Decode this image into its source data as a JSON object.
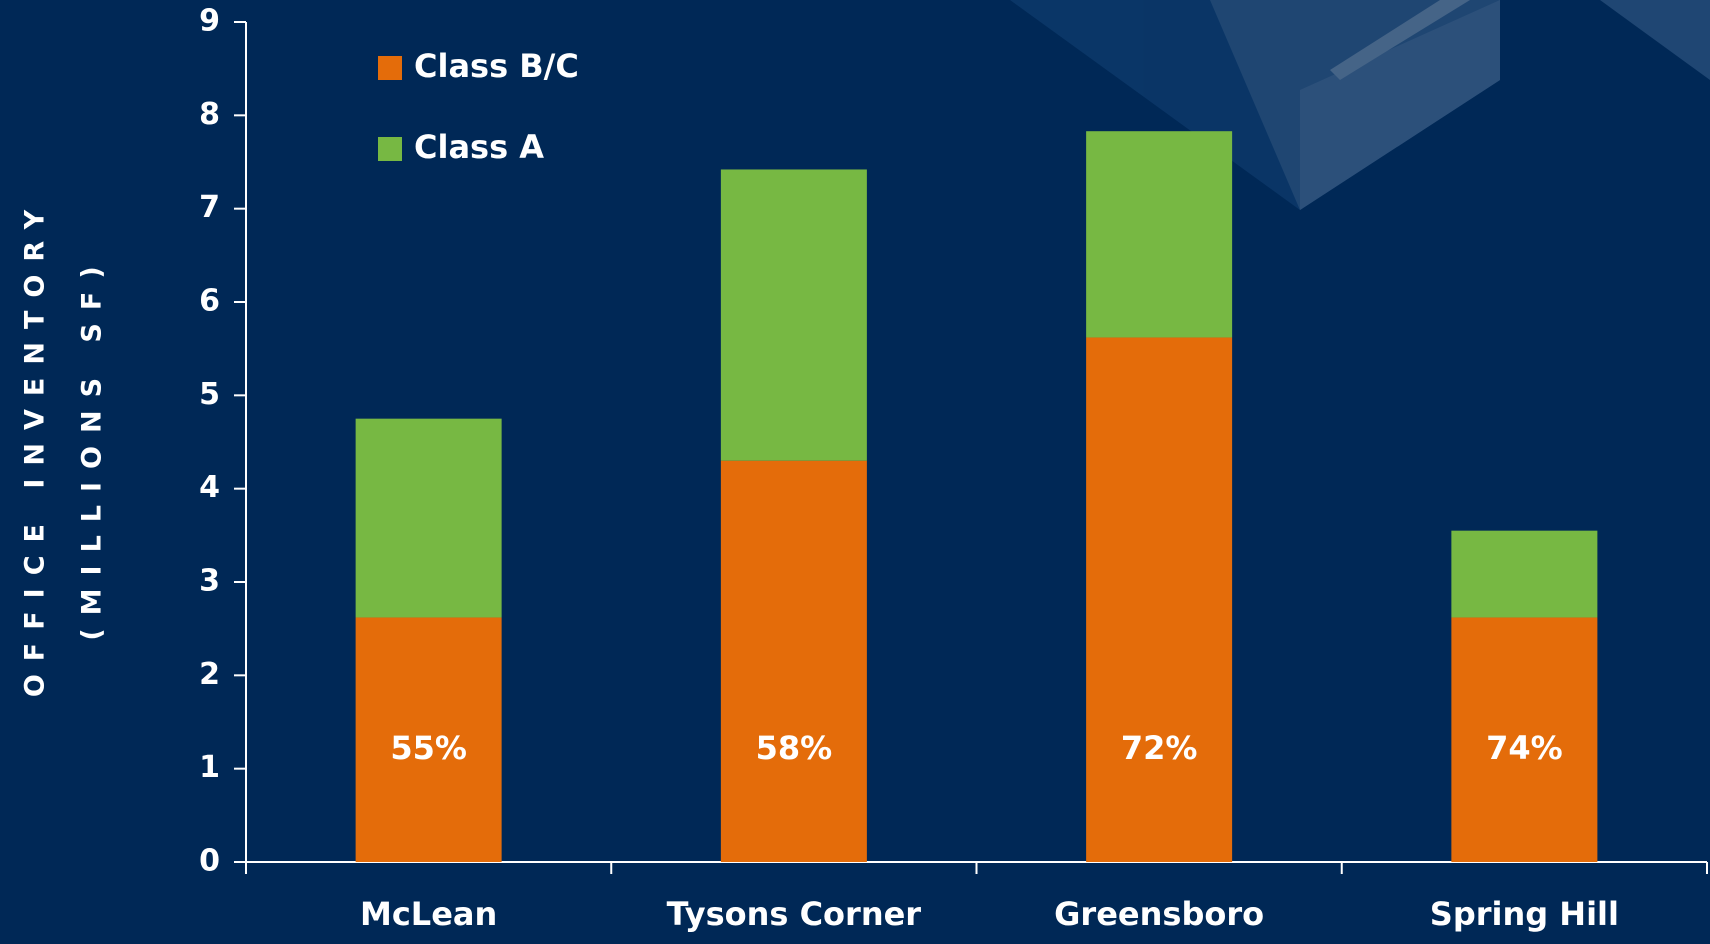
{
  "chart_data": {
    "type": "stacked_bar",
    "y_axis_label": [
      "OFFICE INVENTORY",
      "(MILLIONS SF)"
    ],
    "categories": [
      "McLean",
      "Tysons Corner",
      "Greensboro",
      "Spring Hill"
    ],
    "series": [
      {
        "name": "Class B/C",
        "color": "#e46c0a",
        "values": [
          2.62,
          4.3,
          5.62,
          2.62
        ]
      },
      {
        "name": "Class A",
        "color": "#77b843",
        "values": [
          2.13,
          3.12,
          2.21,
          0.93
        ]
      }
    ],
    "annotations": [
      "55%",
      "58%",
      "72%",
      "74%"
    ],
    "ylim": [
      0,
      9
    ],
    "yticks": [
      0,
      1,
      2,
      3,
      4,
      5,
      6,
      7,
      8,
      9
    ],
    "grid": false,
    "legend": "top-left"
  }
}
